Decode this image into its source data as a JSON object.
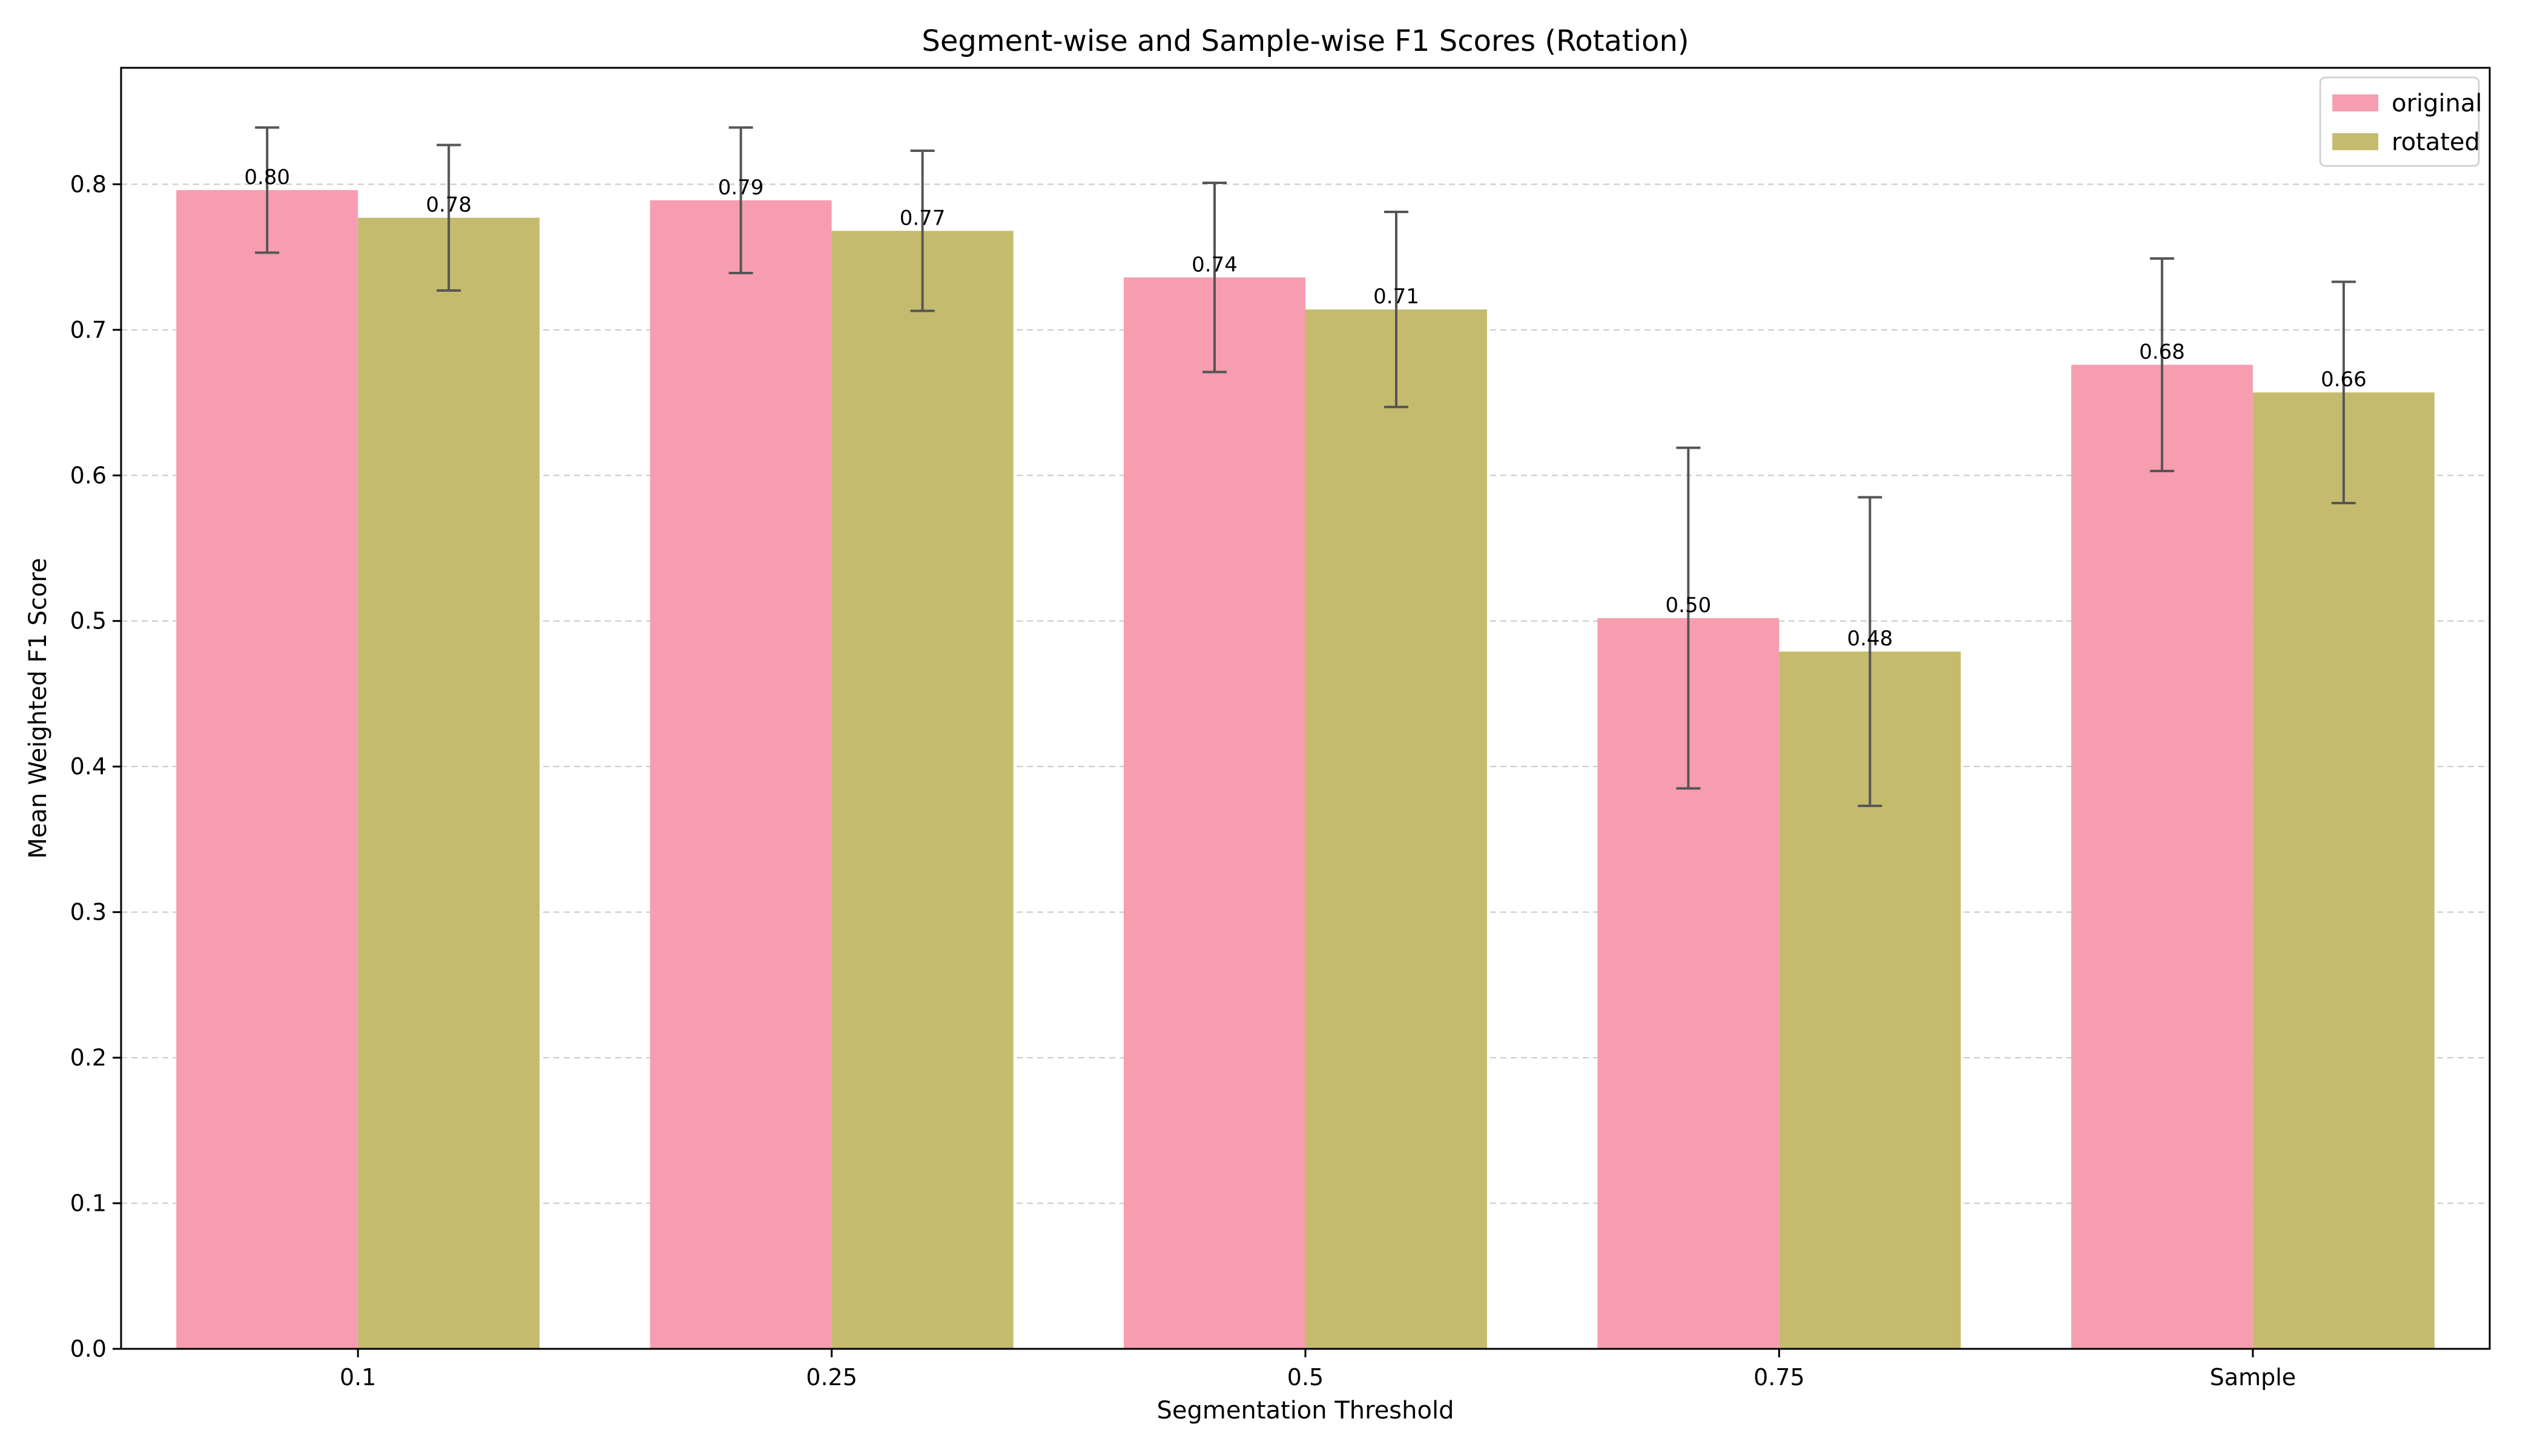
{
  "chart_data": {
    "type": "bar",
    "title": "Segment-wise and Sample-wise F1 Scores (Rotation)",
    "xlabel": "Segmentation Threshold",
    "ylabel": "Mean Weighted F1 Score",
    "categories": [
      "0.1",
      "0.25",
      "0.5",
      "0.75",
      "Sample"
    ],
    "series": [
      {
        "name": "original",
        "color": "#f79db0",
        "values": [
          0.796,
          0.789,
          0.736,
          0.502,
          0.676
        ],
        "errors": [
          0.043,
          0.05,
          0.065,
          0.117,
          0.073
        ],
        "labels": [
          "0.80",
          "0.79",
          "0.74",
          "0.50",
          "0.68"
        ]
      },
      {
        "name": "rotated",
        "color": "#c5bb6e",
        "values": [
          0.777,
          0.768,
          0.714,
          0.479,
          0.657
        ],
        "errors": [
          0.05,
          0.055,
          0.067,
          0.106,
          0.076
        ],
        "labels": [
          "0.78",
          "0.77",
          "0.71",
          "0.48",
          "0.66"
        ]
      }
    ],
    "ylim": [
      0,
      0.88
    ],
    "yticks": [
      "0.0",
      "0.1",
      "0.2",
      "0.3",
      "0.4",
      "0.5",
      "0.6",
      "0.7",
      "0.8"
    ],
    "grid": true,
    "legend_position": "top-right",
    "errorbar_color": "#555555"
  }
}
